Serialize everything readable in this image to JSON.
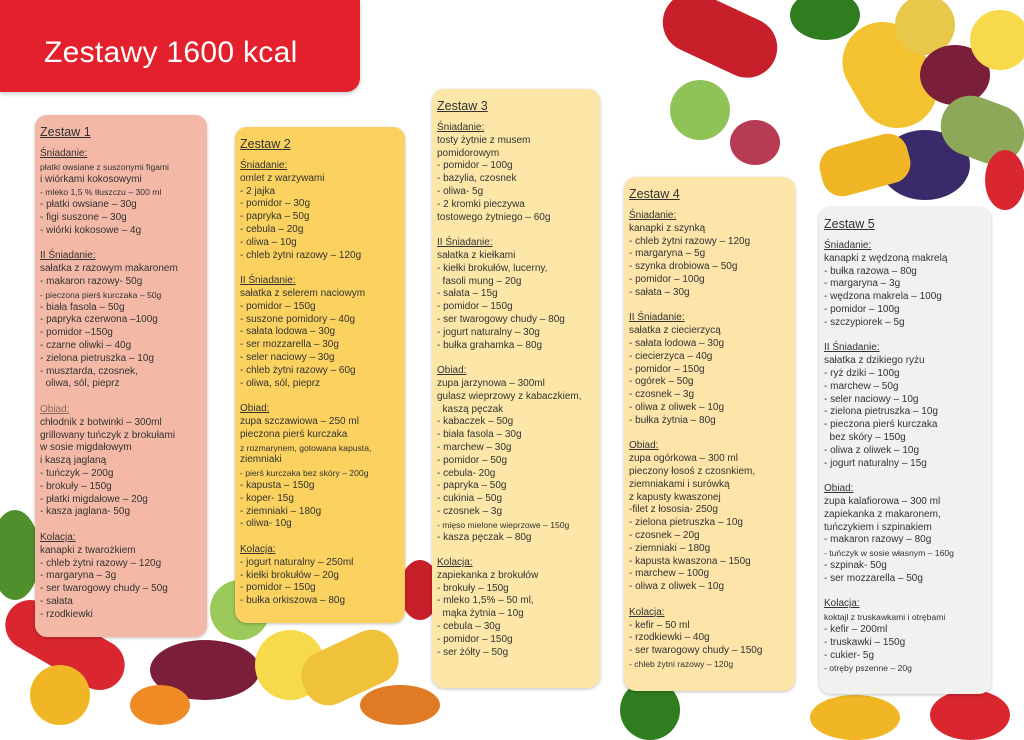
{
  "title": "Zestawy 1600 kcal",
  "colors": {
    "banner": "#e3202b",
    "card1": "#f3b9a6",
    "card2": "#fbd25f",
    "card3": "#fce7a8",
    "card4": "#fde4a8",
    "card5": "#f1f2f0"
  },
  "cards": [
    {
      "title": "Zestaw 1",
      "sections": [
        {
          "title": "Śniadanie:",
          "color": "#333333",
          "lines": [
            "płatki owsiane z suszonymi figami",
            "i wiórkami kokosowymi",
            "- mleko 1,5 % tłuszczu – 300 ml",
            "- płatki owsiane – 30g",
            "- figi suszone – 30g",
            "- wiórki kokosowe – 4g"
          ]
        },
        {
          "title": "II Śniadanie:",
          "color": "#333333",
          "lines": [
            "sałatka z razowym makaronem",
            "- makaron razowy- 50g",
            "- pieczona pierś kurczaka – 50g",
            "- biała fasola – 50g",
            "- papryka czerwona –100g",
            "- pomidor –150g",
            "- czarne oliwki – 40g",
            "- zielona pietruszka – 10g",
            "- musztarda, czosnek,",
            "  oliwa, sól, pieprz"
          ]
        },
        {
          "title": "Obiad:",
          "color": "#8a6a64",
          "lines": [
            "chłodnik z botwinki – 300ml",
            "grillowany tuńczyk z brokułami",
            "w sosie migdałowym",
            "i kaszą jaglaną",
            "- tuńczyk – 200g",
            "- brokuły – 150g",
            "- płatki migdałowe – 20g",
            "- kasza jaglana- 50g"
          ]
        },
        {
          "title": "Kolacja:",
          "color": "#333333",
          "lines": [
            "kanapki z twarożkiem",
            "- chleb żytni razowy – 120g",
            "- margaryna – 3g",
            "- ser twarogowy chudy – 50g",
            "- sałata",
            "- rzodkiewki"
          ]
        }
      ]
    },
    {
      "title": "Zestaw 2",
      "sections": [
        {
          "title": "Śniadanie:",
          "color": "#333333",
          "lines": [
            "omlet z warzywami",
            "- 2 jajka",
            "- pomidor – 30g",
            "- papryka – 50g",
            "- cebula – 20g",
            "- oliwa – 10g",
            "- chleb żytni razowy – 120g"
          ]
        },
        {
          "title": "II Śniadanie:",
          "color": "#333333",
          "lines": [
            "sałatka z selerem naciowym",
            "- pomidor – 150g",
            "- suszone pomidory – 40g",
            "- sałata lodowa – 30g",
            "- ser mozzarella – 30g",
            "- seler naciowy – 30g",
            "- chleb żytni razowy – 60g",
            "- oliwa, sól, pieprz"
          ]
        },
        {
          "title": "Obiad:",
          "color": "#333333",
          "lines": [
            "zupa szczawiowa – 250 ml",
            "pieczona pierś kurczaka",
            "z rozmarynem, gotowana kapusta,",
            "ziemniaki",
            "- pierś kurczaka bez skóry – 200g",
            "- kapusta – 150g",
            "- koper- 15g",
            "- ziemniaki – 180g",
            "- oliwa- 10g"
          ]
        },
        {
          "title": "Kolacja:",
          "color": "#333333",
          "lines": [
            "- jogurt naturalny – 250ml",
            "- kiełki brokułów – 20g",
            "- pomidor – 150g",
            "- bułka orkiszowa – 80g"
          ]
        }
      ]
    },
    {
      "title": "Zestaw 3",
      "sections": [
        {
          "title": "Śniadanie:",
          "color": "#333333",
          "lines": [
            "tosty żytnie z musem",
            "pomidorowym",
            "- pomidor – 100g",
            "- bazylia, czosnek",
            "- oliwa- 5g",
            "- 2 kromki pieczywa",
            "tostowego żytniego – 60g"
          ]
        },
        {
          "title": "II Śniadanie:",
          "color": "#333333",
          "lines": [
            "sałatka z kiełkami",
            "- kiełki brokułów, lucerny,",
            "  fasoli mung – 20g",
            "- sałata – 15g",
            "- pomidor – 150g",
            "- ser twarogowy chudy – 80g",
            "- jogurt naturalny – 30g",
            "- bułka grahamka – 80g"
          ]
        },
        {
          "title": "Obiad:",
          "color": "#333333",
          "lines": [
            "zupa jarzynowa – 300ml",
            "gulasz wieprzowy z kabaczkiem,",
            "  kaszą pęczak",
            "- kabaczek – 50g",
            "- biała fasola – 30g",
            "- marchew – 30g",
            "- pomidor – 50g",
            "- cebula- 20g",
            "- papryka – 50g",
            "- cukinia – 50g",
            "- czosnek – 3g",
            "- mięso mielone wieprzowe – 150g",
            "- kasza pęczak – 80g"
          ]
        },
        {
          "title": "Kolacja:",
          "color": "#333333",
          "lines": [
            "zapiekanka z brokułów",
            "- brokuły – 150g",
            "- mleko 1,5% – 50 ml,",
            "  mąka żytnia – 10g",
            "- cebula – 30g",
            "- pomidor – 150g",
            "- ser żółty – 50g"
          ]
        }
      ]
    },
    {
      "title": "Zestaw 4",
      "sections": [
        {
          "title": "Śniadanie:",
          "color": "#333333",
          "lines": [
            "kanapki z szynką",
            "- chleb żytni razowy – 120g",
            "- margaryna – 5g",
            "- szynka drobiowa – 50g",
            "- pomidor – 100g",
            "- sałata – 30g"
          ]
        },
        {
          "title": "II Śniadanie:",
          "color": "#333333",
          "lines": [
            "sałatka z ciecierzycą",
            "- sałata lodowa – 30g",
            "- ciecierzyca – 40g",
            "- pomidor – 150g",
            "- ogórek – 50g",
            "- czosnek – 3g",
            "- oliwa z oliwek – 10g",
            "- bułka żytnia – 80g"
          ]
        },
        {
          "title": "Obiad:",
          "color": "#333333",
          "lines": [
            "zupa ogórkowa – 300 ml",
            "pieczony łosoś z czosnkiem,",
            "ziemniakami i surówką",
            "z kapusty kwaszonej",
            "-filet z łososia- 250g",
            "- zielona pietruszka – 10g",
            "- czosnek – 20g",
            "- ziemniaki – 180g",
            "- kapusta kwaszona – 150g",
            "- marchew – 100g",
            "- oliwa z oliwek – 10g"
          ]
        },
        {
          "title": "Kolacja:",
          "color": "#333333",
          "lines": [
            "- kefir – 50 ml",
            "- rzodkiewki – 40g",
            "- ser twarogowy chudy – 150g",
            "- chleb żytni razowy – 120g"
          ]
        }
      ]
    },
    {
      "title": "Zestaw 5",
      "sections": [
        {
          "title": "Śniadanie:",
          "color": "#333333",
          "lines": [
            "kanapki z wędzoną makrelą",
            "- bułka razowa – 80g",
            "- margaryna – 3g",
            "- wędzona makrela – 100g",
            "- pomidor – 100g",
            "- szczypiorek – 5g"
          ]
        },
        {
          "title": "II Śniadanie:",
          "color": "#333333",
          "lines": [
            "sałatka z dzikiego ryżu",
            "- ryż dziki – 100g",
            "- marchew – 50g",
            "- seler naciowy – 10g",
            "- zielona pietruszka – 10g",
            "- pieczona pierś kurczaka",
            "  bez skóry – 150g",
            "- oliwa z oliwek – 10g",
            "- jogurt naturalny – 15g"
          ]
        },
        {
          "title": "Obiad:",
          "color": "#333333",
          "lines": [
            "zupa kalafiorowa – 300 ml",
            "zapiekanka z makaronem,",
            "tuńczykiem i szpinakiem",
            "- makaron razowy – 80g",
            "- tuńczyk w sosie własnym – 160g",
            "- szpinak- 50g",
            "- ser mozzarella – 50g"
          ]
        },
        {
          "title": "Kolacja:",
          "color": "#333333",
          "lines": [
            "koktajl z truskawkami i otrębami",
            "- kefir – 200ml",
            "- truskawki – 150g",
            "- cukier- 5g",
            "- otręby pszenne – 20g"
          ]
        }
      ]
    }
  ]
}
